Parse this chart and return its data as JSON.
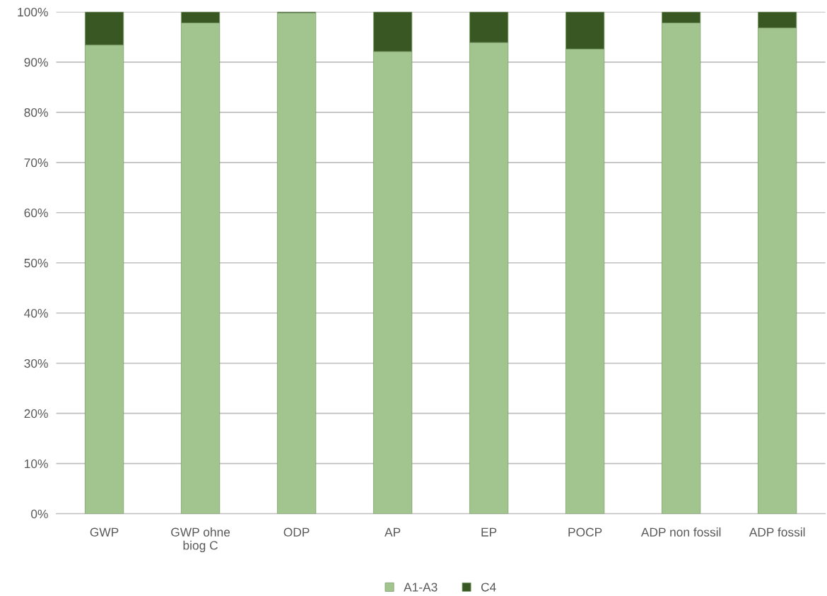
{
  "chart_data": {
    "type": "bar",
    "stacked": true,
    "categories": [
      "GWP",
      "GWP ohne\nbiog C",
      "ODP",
      "AP",
      "EP",
      "POCP",
      "ADP non fossil",
      "ADP fossil"
    ],
    "series": [
      {
        "name": "A1-A3",
        "color": "#a2c58f",
        "values": [
          93.4,
          97.8,
          99.8,
          92.1,
          93.9,
          92.6,
          97.8,
          96.8
        ]
      },
      {
        "name": "C4",
        "color": "#385723",
        "values": [
          6.6,
          2.2,
          0.2,
          7.9,
          6.1,
          7.4,
          2.2,
          3.2
        ]
      }
    ],
    "ylim": [
      0,
      100
    ],
    "yticks": [
      {
        "value": 0,
        "label": "0%"
      },
      {
        "value": 10,
        "label": "10%"
      },
      {
        "value": 20,
        "label": "20%"
      },
      {
        "value": 30,
        "label": "30%"
      },
      {
        "value": 40,
        "label": "40%"
      },
      {
        "value": 50,
        "label": "50%"
      },
      {
        "value": 60,
        "label": "60%"
      },
      {
        "value": 70,
        "label": "70%"
      },
      {
        "value": 80,
        "label": "80%"
      },
      {
        "value": 90,
        "label": "90%"
      },
      {
        "value": 100,
        "label": "100%"
      }
    ],
    "grid": "y",
    "legend": "bottom"
  }
}
